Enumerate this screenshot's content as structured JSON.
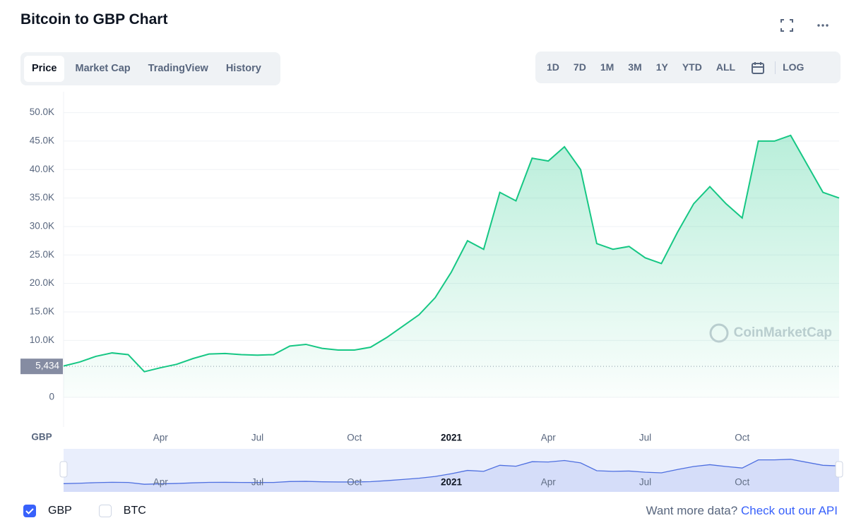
{
  "header": {
    "title": "Bitcoin to GBP Chart"
  },
  "tabs": [
    "Price",
    "Market Cap",
    "TradingView",
    "History"
  ],
  "ranges": [
    "1D",
    "7D",
    "1M",
    "3M",
    "1Y",
    "YTD",
    "ALL"
  ],
  "log_button": "LOG",
  "chart_data": {
    "type": "line",
    "color": "#16c784",
    "categories": [
      null,
      null,
      null,
      null,
      null,
      null,
      "Apr",
      null,
      null,
      null,
      null,
      null,
      "Jul",
      null,
      null,
      null,
      null,
      null,
      "Oct",
      null,
      null,
      null,
      null,
      null,
      "2021",
      null,
      null,
      null,
      null,
      null,
      "Apr",
      null,
      null,
      null,
      null,
      null,
      "Jul",
      null,
      null,
      null,
      null,
      null,
      "Oct",
      null,
      null,
      null,
      null,
      null,
      null
    ],
    "values": [
      5500,
      6200,
      7200,
      7800,
      7500,
      4500,
      5200,
      5800,
      6800,
      7600,
      7700,
      7500,
      7400,
      7500,
      9000,
      9300,
      8600,
      8300,
      8300,
      8800,
      10500,
      12500,
      14500,
      17500,
      22000,
      27500,
      26000,
      36000,
      34500,
      42000,
      41500,
      44000,
      40000,
      27000,
      26000,
      26500,
      24500,
      23500,
      29000,
      34000,
      37000,
      34000,
      31500,
      45000,
      45000,
      46000,
      41000,
      36000,
      35000
    ],
    "ylim": [
      0,
      52800
    ],
    "yticks": [
      0,
      {
        "value": 10000,
        "label": "10.0K"
      },
      {
        "value": 15000,
        "label": "15.0K"
      },
      {
        "value": 20000,
        "label": "20.0K"
      },
      {
        "value": 25000,
        "label": "25.0K"
      },
      {
        "value": 30000,
        "label": "30.0K"
      },
      {
        "value": 35000,
        "label": "35.0K"
      },
      {
        "value": 40000,
        "label": "40.0K"
      },
      {
        "value": 45000,
        "label": "45.0K"
      },
      {
        "value": 50000,
        "label": "50.0K"
      }
    ],
    "grid": true,
    "price_tag": {
      "value": 5434,
      "label": "5,434"
    },
    "y_label": "GBP",
    "watermark": "CoinMarketCap"
  },
  "footer": {
    "options": [
      {
        "label": "GBP",
        "checked": true
      },
      {
        "label": "BTC",
        "checked": false
      }
    ],
    "prompt": "Want more data?",
    "link": "Check out our API"
  }
}
